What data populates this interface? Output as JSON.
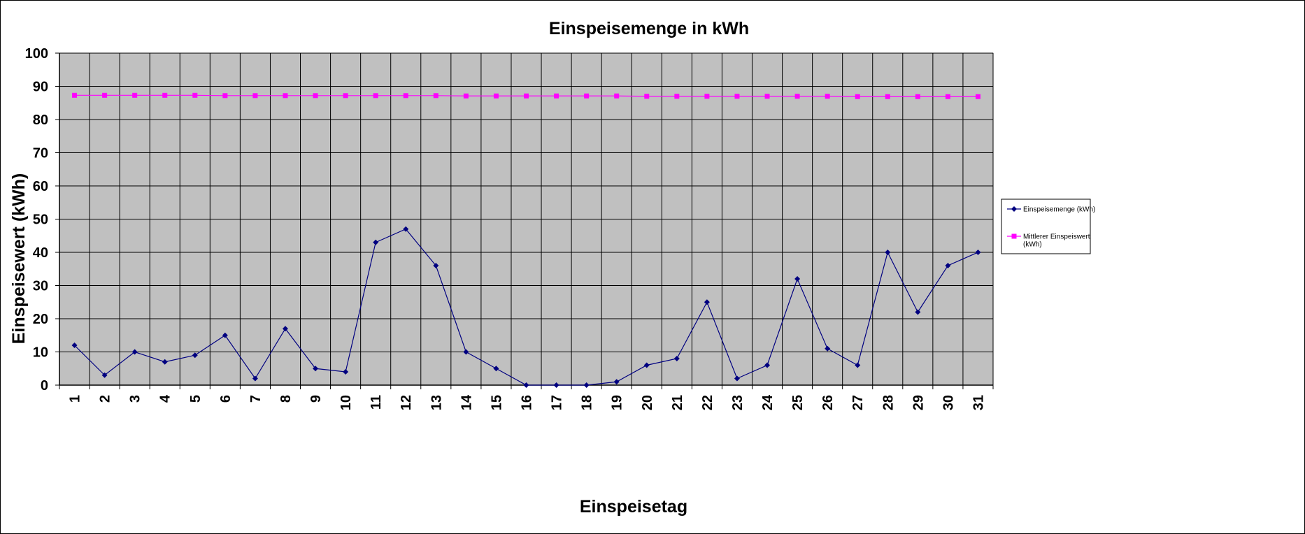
{
  "chart_data": {
    "type": "line",
    "title": "Einspeisemenge in kWh",
    "xlabel": "Einspeisetag",
    "ylabel": "Einspeisewert  (kWh)",
    "categories": [
      "1",
      "2",
      "3",
      "4",
      "5",
      "6",
      "7",
      "8",
      "9",
      "10",
      "11",
      "12",
      "13",
      "14",
      "15",
      "16",
      "17",
      "18",
      "19",
      "20",
      "21",
      "22",
      "23",
      "24",
      "25",
      "26",
      "27",
      "28",
      "29",
      "30",
      "31"
    ],
    "ylim": [
      0,
      100
    ],
    "yticks": [
      0,
      10,
      20,
      30,
      40,
      50,
      60,
      70,
      80,
      90,
      100
    ],
    "grid": true,
    "plot_background": "#c0c0c0",
    "legend_position": "right",
    "series": [
      {
        "name": "Einspeisemenge (kWh)",
        "color": "#000080",
        "marker": "diamond",
        "values": [
          12,
          3,
          10,
          7,
          9,
          15,
          2,
          17,
          5,
          4,
          43,
          47,
          36,
          10,
          5,
          0,
          0,
          0,
          1,
          6,
          8,
          25,
          2,
          6,
          32,
          11,
          6,
          40,
          22,
          36,
          40
        ]
      },
      {
        "name": "Mittlerer Einspeiswert (kWh)",
        "color": "#ff00ff",
        "marker": "square",
        "values": [
          87.3,
          87.3,
          87.3,
          87.3,
          87.3,
          87.2,
          87.2,
          87.2,
          87.2,
          87.2,
          87.2,
          87.2,
          87.2,
          87.1,
          87.1,
          87.1,
          87.1,
          87.1,
          87.1,
          87.0,
          87.0,
          87.0,
          87.0,
          87.0,
          87.0,
          87.0,
          86.9,
          86.9,
          86.9,
          86.9,
          86.9
        ]
      }
    ],
    "legend": {
      "entries": [
        {
          "lines": [
            "Einspeisemenge (kWh)"
          ]
        },
        {
          "lines": [
            "Mittlerer Einspeiswert",
            "(kWh)"
          ]
        }
      ]
    }
  }
}
